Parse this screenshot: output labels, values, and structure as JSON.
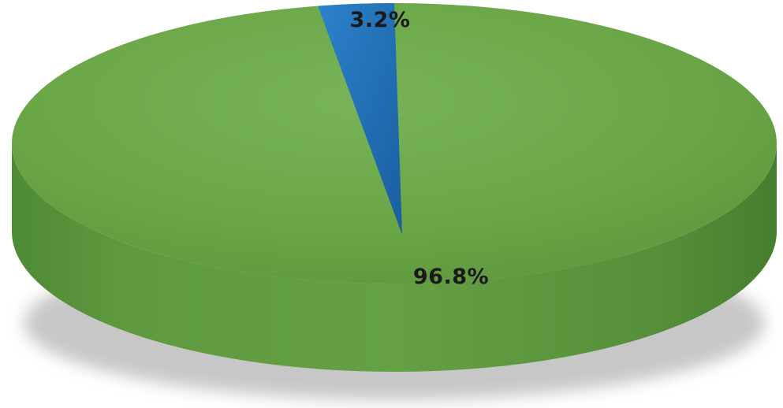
{
  "chart_data": {
    "type": "pie",
    "style": "3d",
    "slices": [
      {
        "label": "3.2%",
        "value": 3.2,
        "color": "#1f6fb8"
      },
      {
        "label": "96.8%",
        "value": 96.8,
        "color": "#6aa646"
      }
    ]
  }
}
